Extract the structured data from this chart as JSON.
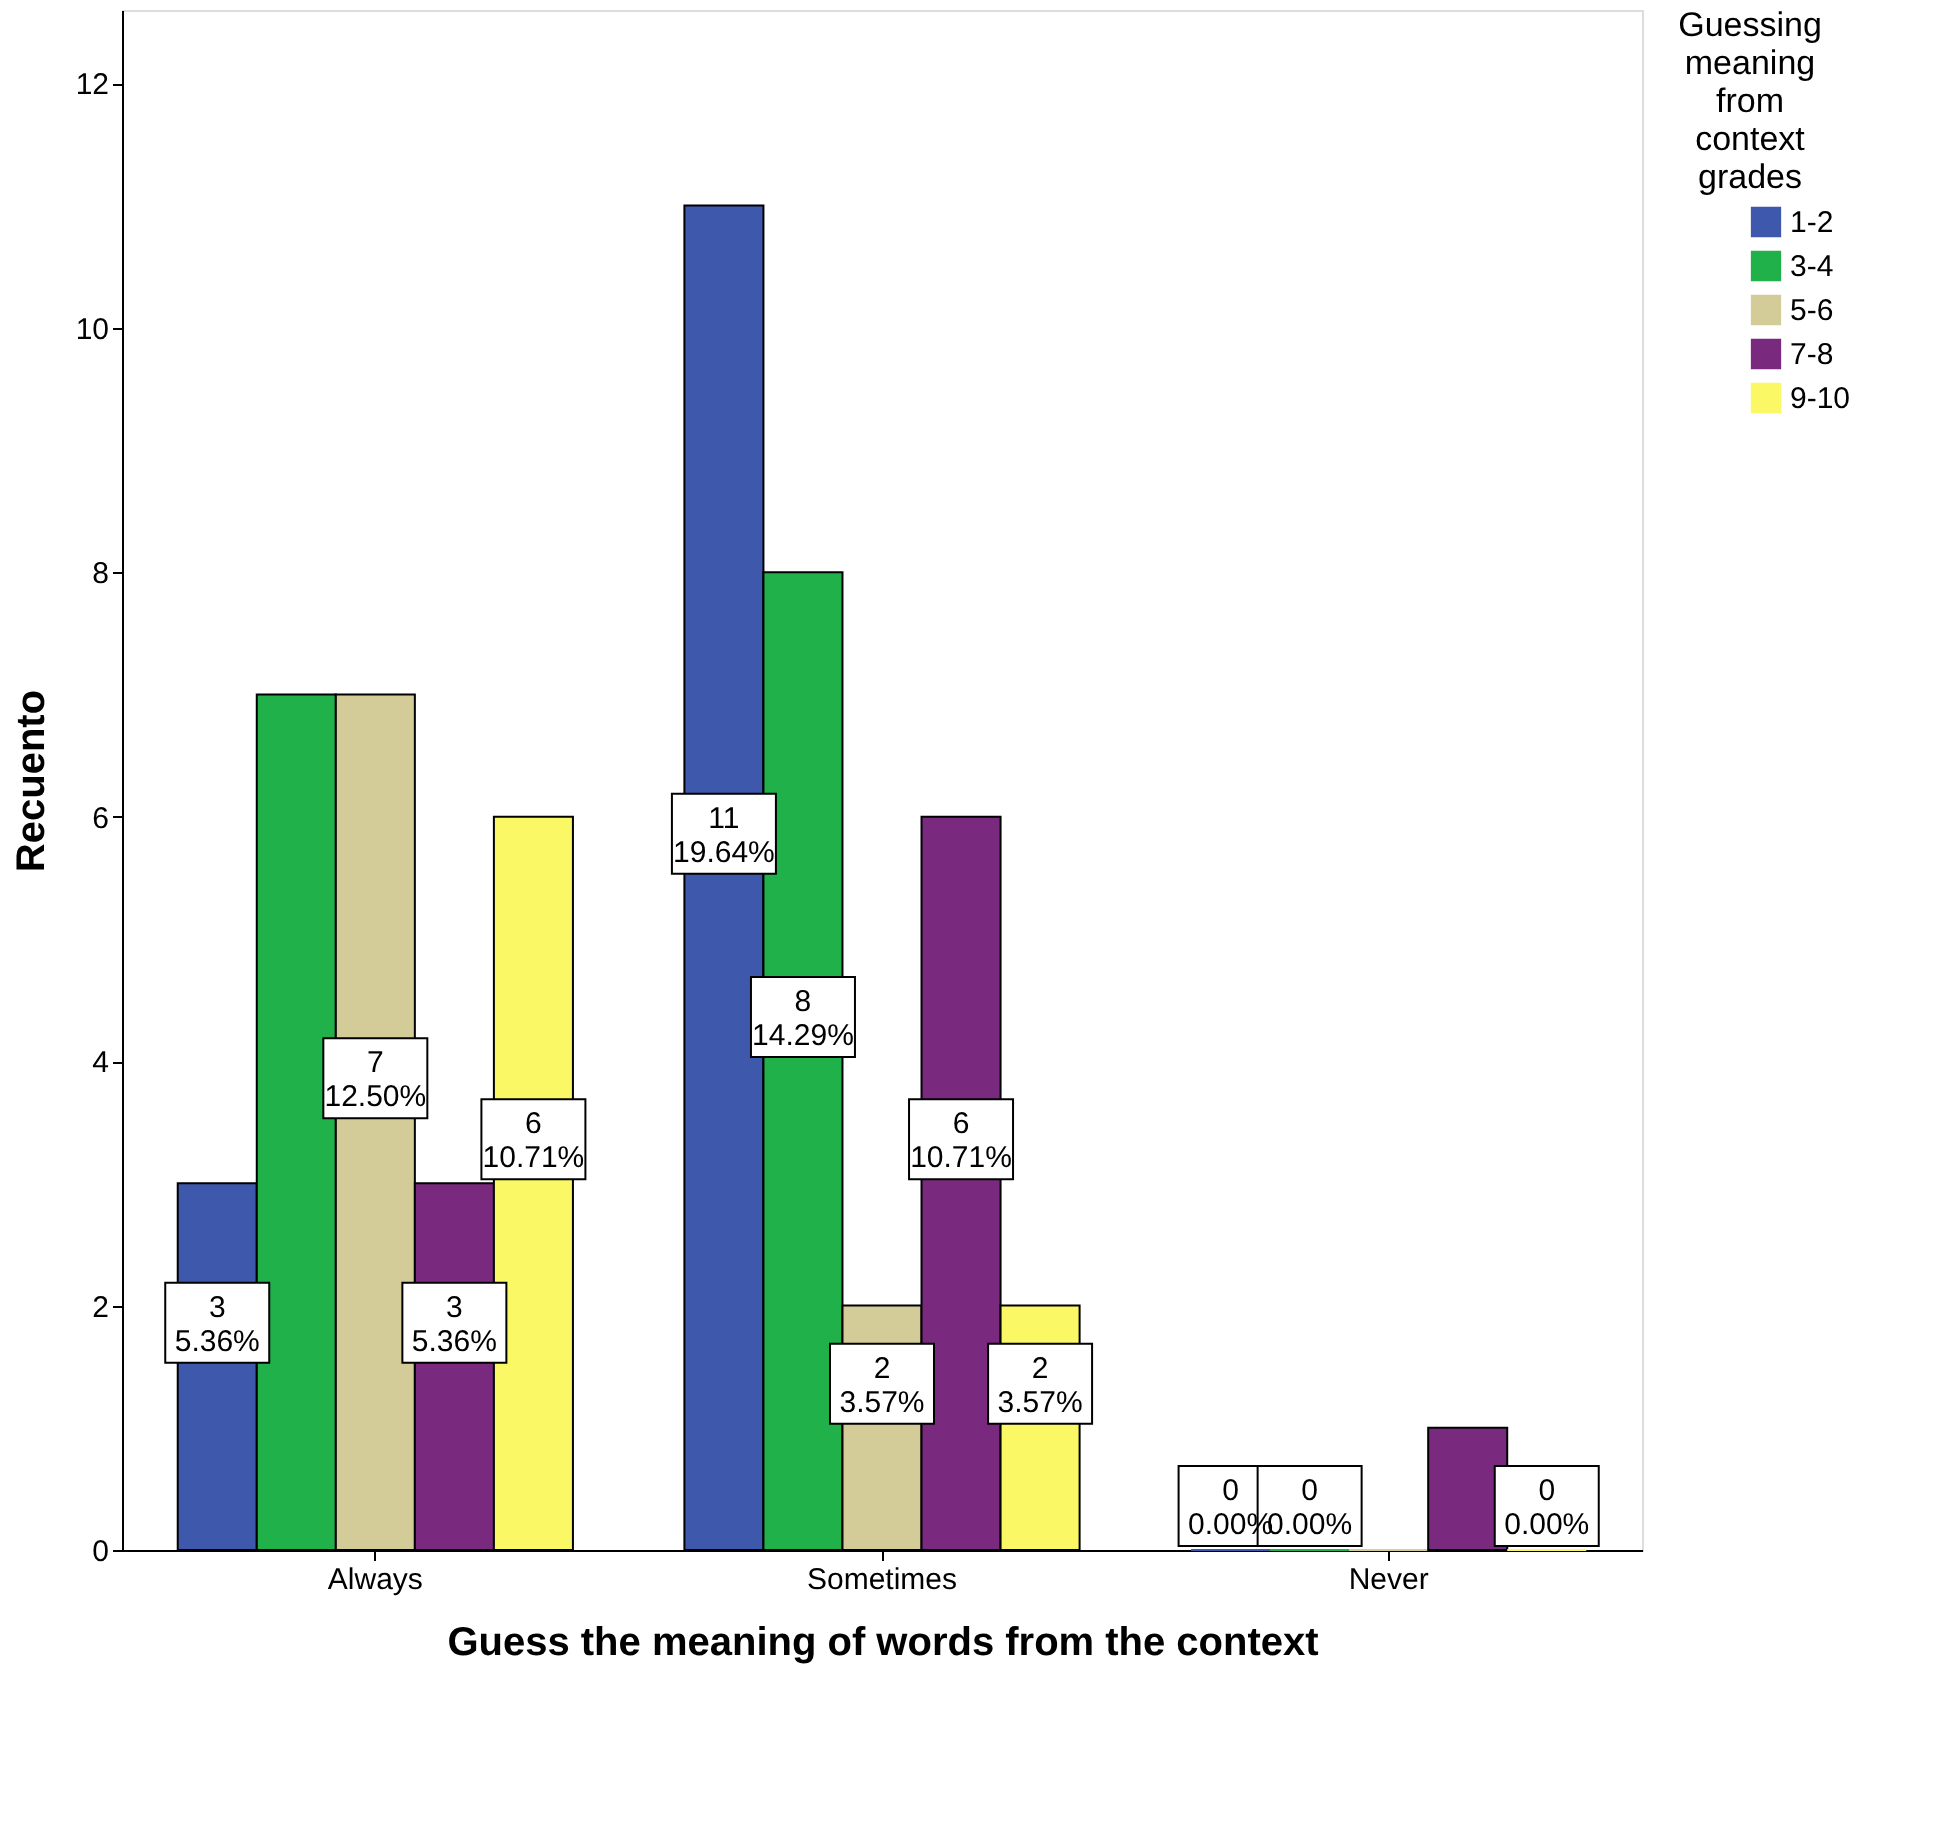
{
  "chart_data": {
    "type": "bar",
    "xlabel": "Guess the meaning of words from the context",
    "ylabel": "Recuento",
    "legend_title": "Guessing meaning from context grades",
    "legend": "right",
    "grid": false,
    "categories": [
      "Always",
      "Sometimes",
      "Never"
    ],
    "ylim": [
      0,
      12.6
    ],
    "yticks": [
      0,
      2,
      4,
      6,
      8,
      10,
      12
    ],
    "series": [
      {
        "name": "1-2",
        "color": "#3e58ac",
        "values": [
          3,
          11,
          0
        ],
        "value_labels": [
          "3\n5.36%",
          "11\n19.64%",
          "0\n0.00%"
        ]
      },
      {
        "name": "3-4",
        "color": "#21b14a",
        "values": [
          7,
          8,
          0
        ],
        "value_labels": [
          null,
          "8\n14.29%",
          "0\n0.00%"
        ]
      },
      {
        "name": "5-6",
        "color": "#d4cc98",
        "values": [
          7,
          2,
          0
        ],
        "value_labels": [
          "7\n12.50%",
          "2\n3.57%",
          null
        ]
      },
      {
        "name": "7-8",
        "color": "#7a2a7e",
        "values": [
          3,
          6,
          1
        ],
        "value_labels": [
          "3\n5.36%",
          "6\n10.71%",
          null
        ]
      },
      {
        "name": "9-10",
        "color": "#fbf865",
        "values": [
          6,
          2,
          0
        ],
        "value_labels": [
          "6\n10.71%",
          "2\n3.57%",
          "0\n0.00%"
        ]
      }
    ]
  }
}
